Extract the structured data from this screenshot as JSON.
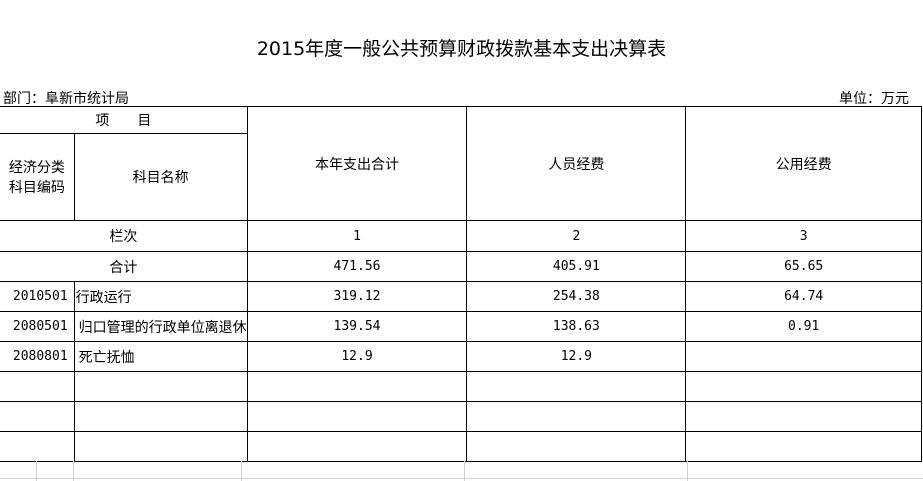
{
  "title": "2015年度一般公共预算财政拨款基本支出决算表",
  "department": "部门：阜新市统计局",
  "unit": "单位：万元",
  "header": {
    "project": "项　　目",
    "code": "经济分类\n科目编码",
    "code_line1": "经济分类",
    "code_line2": "科目编码",
    "name": "科目名称",
    "total": "本年支出合计",
    "personnel": "人员经费",
    "public": "公用经费"
  },
  "column_index": {
    "label": "栏次",
    "c1": "1",
    "c2": "2",
    "c3": "3"
  },
  "sum_row": {
    "label": "合计",
    "total": "471.56",
    "personnel": "405.91",
    "public": "65.65"
  },
  "rows": [
    {
      "code": "2010501",
      "name": "行政运行",
      "total": "319.12",
      "personnel": "254.38",
      "public": "64.74"
    },
    {
      "code": "2080501",
      "name": "归口管理的行政单位离退休",
      "total": "139.54",
      "personnel": "138.63",
      "public": "0.91"
    },
    {
      "code": "2080801",
      "name": "死亡抚恤",
      "total": "12.9",
      "personnel": "12.9",
      "public": ""
    }
  ]
}
